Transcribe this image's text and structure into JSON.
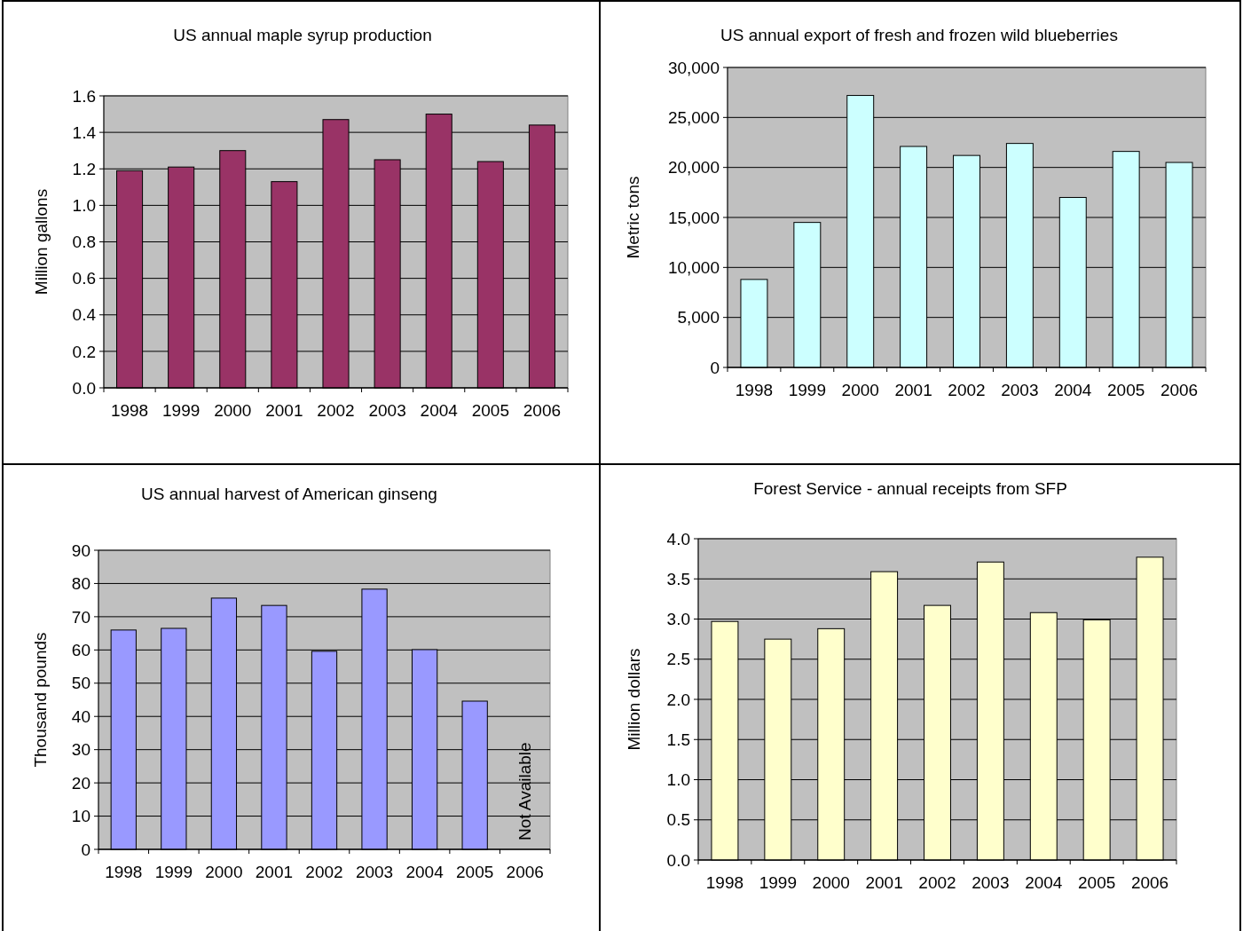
{
  "chart_data": [
    {
      "type": "bar",
      "title": "US annual maple syrup production",
      "ylabel": "Million gallons",
      "categories": [
        "1998",
        "1999",
        "2000",
        "2001",
        "2002",
        "2003",
        "2004",
        "2005",
        "2006"
      ],
      "values": [
        1.19,
        1.21,
        1.3,
        1.13,
        1.47,
        1.25,
        1.5,
        1.24,
        1.44
      ],
      "color": "#993366",
      "ylim": [
        0,
        1.6
      ],
      "yticks": [
        {
          "value": 0,
          "label": "0.0"
        },
        0.2,
        0.4,
        0.6,
        0.8,
        {
          "value": 1,
          "label": "1.0"
        },
        1.2,
        1.4,
        1.6
      ],
      "grid": "y"
    },
    {
      "type": "bar",
      "title": "US annual export of fresh and frozen wild blueberries",
      "ylabel": "Metric tons",
      "categories": [
        "1998",
        "1999",
        "2000",
        "2001",
        "2002",
        "2003",
        "2004",
        "2005",
        "2006"
      ],
      "values": [
        8800,
        14500,
        27200,
        22100,
        21200,
        22400,
        17000,
        21600,
        20500
      ],
      "color": "#ccffff",
      "ylim": [
        0,
        30000
      ],
      "yticks": [
        0,
        {
          "value": 5000,
          "label": "5,000"
        },
        {
          "value": 10000,
          "label": "10,000"
        },
        {
          "value": 15000,
          "label": "15,000"
        },
        {
          "value": 20000,
          "label": "20,000"
        },
        {
          "value": 25000,
          "label": "25,000"
        },
        {
          "value": 30000,
          "label": "30,000"
        }
      ],
      "grid": "y"
    },
    {
      "type": "bar",
      "title": "US annual harvest of American ginseng",
      "ylabel": "Thousand pounds",
      "categories": [
        "1998",
        "1999",
        "2000",
        "2001",
        "2002",
        "2003",
        "2004",
        "2005",
        "2006"
      ],
      "values": [
        66,
        66.5,
        75.6,
        73.4,
        59.6,
        78.3,
        60.1,
        44.6,
        null
      ],
      "color": "#9999ff",
      "ylim": [
        0,
        90
      ],
      "yticks": [
        0,
        10,
        20,
        30,
        40,
        50,
        60,
        70,
        80,
        90
      ],
      "grid": "y",
      "annotations": [
        "Not Available"
      ]
    },
    {
      "type": "bar",
      "title": "Forest Service - annual receipts from SFP",
      "ylabel": "Million dollars",
      "categories": [
        "1998",
        "1999",
        "2000",
        "2001",
        "2002",
        "2003",
        "2004",
        "2005",
        "2006"
      ],
      "values": [
        2.97,
        2.75,
        2.88,
        3.59,
        3.17,
        3.71,
        3.08,
        2.99,
        3.77
      ],
      "color": "#ffffcc",
      "ylim": [
        0,
        4
      ],
      "yticks": [
        {
          "value": 0,
          "label": "0.0"
        },
        0.5,
        {
          "value": 1,
          "label": "1.0"
        },
        1.5,
        {
          "value": 2,
          "label": "2.0"
        },
        2.5,
        {
          "value": 3,
          "label": "3.0"
        },
        3.5,
        {
          "value": 4,
          "label": "4.0"
        }
      ],
      "grid": "y"
    }
  ]
}
